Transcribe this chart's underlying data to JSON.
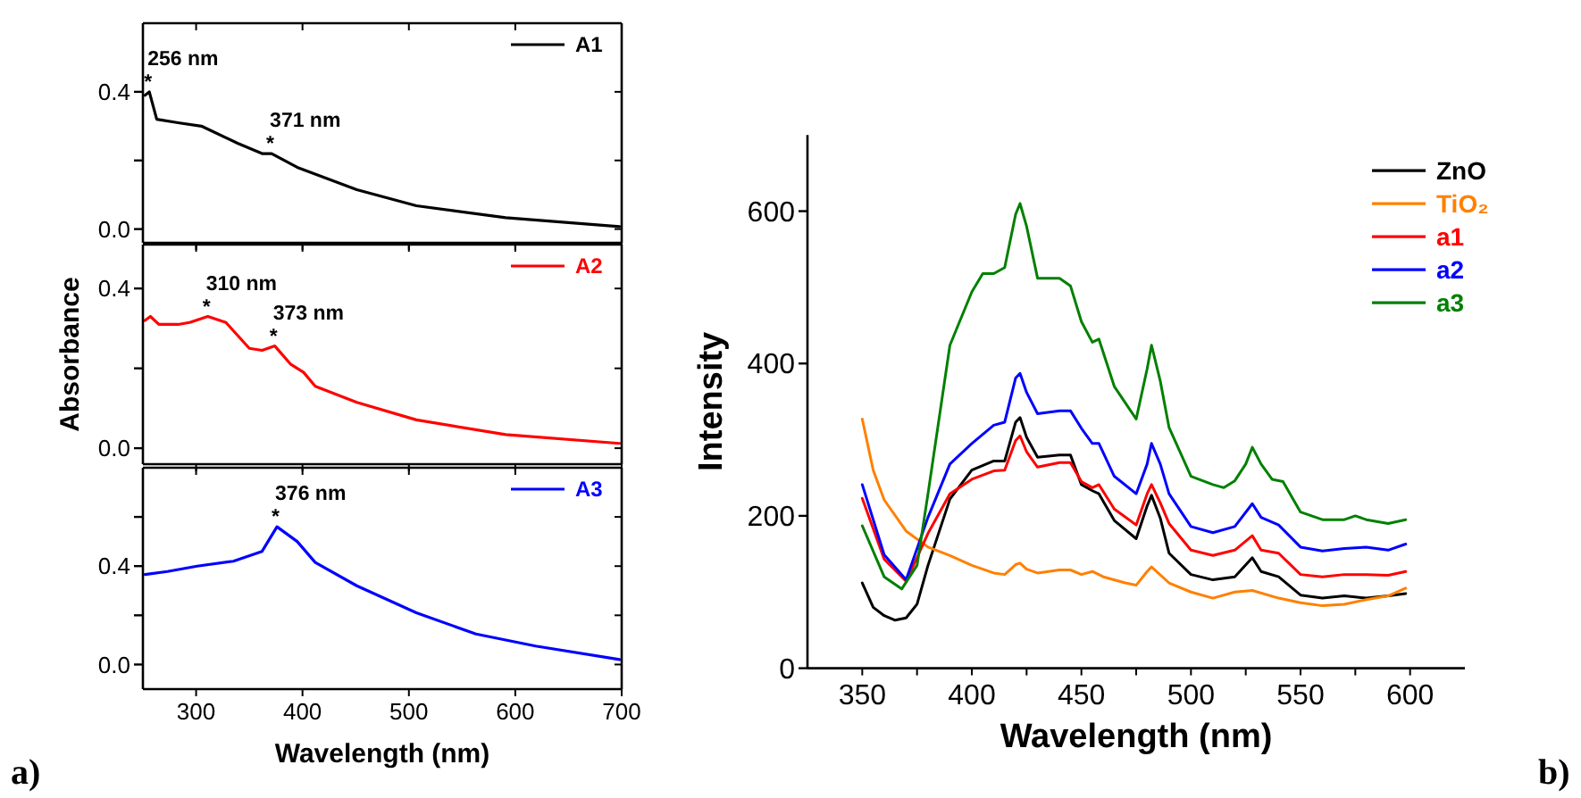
{
  "chart_data": [
    {
      "type": "line",
      "xlim": [
        250,
        700
      ],
      "xticks": [
        {
          "value": 300,
          "label": null
        },
        {
          "value": 400,
          "label": null
        },
        {
          "value": 500,
          "label": null
        },
        {
          "value": 600,
          "label": null
        },
        {
          "value": 700,
          "label": null
        }
      ],
      "ylim": [
        -0.04,
        0.6
      ],
      "yticks": [
        {
          "value": 0,
          "label": "0.0"
        },
        {
          "value": 0.2,
          "label": null
        },
        0.4
      ],
      "tick_labels": "y",
      "legend": "top right",
      "annotations": [
        {
          "text": "256 nm\n*",
          "x": 256,
          "y": 0.4
        },
        {
          "text": "371 nm\n*",
          "x": 371,
          "y": 0.22
        }
      ],
      "series": [
        {
          "name": "A1",
          "color": "#000000",
          "x": [
            252,
            256,
            263,
            283,
            305,
            339,
            362,
            371,
            395,
            451,
            507,
            591,
            698
          ],
          "values": [
            0.39,
            0.4,
            0.32,
            0.31,
            0.3,
            0.25,
            0.22,
            0.22,
            0.18,
            0.115,
            0.068,
            0.033,
            0.007
          ]
        }
      ]
    },
    {
      "type": "line",
      "xlim": [
        250,
        700
      ],
      "xticks": [
        {
          "value": 300,
          "label": null
        },
        {
          "value": 400,
          "label": null
        },
        {
          "value": 500,
          "label": null
        },
        {
          "value": 600,
          "label": null
        },
        {
          "value": 700,
          "label": null
        }
      ],
      "ylim": [
        -0.04,
        0.51
      ],
      "yticks": [
        {
          "value": 0,
          "label": "0.0"
        },
        {
          "value": 0.2,
          "label": null
        },
        0.4
      ],
      "tick_labels": "y",
      "ylabel": "Absorbance",
      "legend": "top right",
      "annotations": [
        {
          "text": "310 nm\n*",
          "x": 311,
          "y": 0.33
        },
        {
          "text": "373 nm\n*",
          "x": 374,
          "y": 0.256
        }
      ],
      "series": [
        {
          "name": "A2",
          "color": "#ff0000",
          "x": [
            252,
            257,
            265,
            283,
            294,
            311,
            328,
            350,
            362,
            374,
            389,
            401,
            412,
            451,
            507,
            591,
            698
          ],
          "values": [
            0.32,
            0.33,
            0.31,
            0.31,
            0.315,
            0.33,
            0.315,
            0.25,
            0.245,
            0.256,
            0.21,
            0.19,
            0.155,
            0.115,
            0.071,
            0.034,
            0.012
          ]
        }
      ]
    },
    {
      "type": "line",
      "xlim": [
        250,
        700
      ],
      "xticks": [
        300,
        400,
        500,
        600,
        700
      ],
      "ylim": [
        -0.1,
        0.8
      ],
      "yticks": [
        {
          "value": 0,
          "label": "0.0"
        },
        {
          "value": 0.2,
          "label": null
        },
        0.4,
        {
          "value": 0.6,
          "label": null
        }
      ],
      "xlabel": "Wavelength (nm)",
      "legend": "top right",
      "annotations": [
        {
          "text": "376 nm\n*",
          "x": 376,
          "y": 0.56
        },
        "a)"
      ],
      "series": [
        {
          "name": "A3",
          "color": "#0000ff",
          "x": [
            252,
            273,
            301,
            335,
            362,
            376,
            395,
            412,
            451,
            507,
            563,
            619,
            698
          ],
          "values": [
            0.366,
            0.378,
            0.4,
            0.42,
            0.46,
            0.56,
            0.5,
            0.415,
            0.32,
            0.21,
            0.124,
            0.075,
            0.02
          ]
        }
      ]
    },
    {
      "type": "line",
      "xlim": [
        325,
        625
      ],
      "xticks": [
        350,
        {
          "value": 375,
          "label": null
        },
        400,
        {
          "value": 425,
          "label": null
        },
        450,
        {
          "value": 475,
          "label": null
        },
        500,
        {
          "value": 525,
          "label": null
        },
        550,
        {
          "value": 575,
          "label": null
        },
        600
      ],
      "ylim": [
        0,
        700
      ],
      "yticks": [
        0,
        200,
        400,
        600
      ],
      "xlabel": "Wavelength (nm)",
      "ylabel": "Intensity",
      "legend": "top right",
      "annotations": [
        "b)"
      ],
      "series": [
        {
          "name": "ZnO",
          "color": "#000000",
          "x": [
            350,
            355,
            360,
            365,
            370,
            375,
            380,
            390,
            400,
            410,
            415,
            420,
            422,
            425,
            430,
            440,
            445,
            450,
            455,
            458,
            465,
            475,
            480,
            482,
            486,
            490,
            500,
            510,
            520,
            528,
            532,
            540,
            550,
            560,
            570,
            580,
            590,
            598
          ],
          "values": [
            112,
            80,
            69,
            63,
            66,
            84,
            135,
            222,
            260,
            272,
            272,
            323,
            329,
            303,
            277,
            280,
            280,
            241,
            233,
            229,
            194,
            170,
            213,
            227,
            197,
            151,
            123,
            116,
            120,
            145,
            127,
            120,
            96,
            92,
            95,
            92,
            95,
            98
          ]
        },
        {
          "name": "TiO₂",
          "color": "#ff8000",
          "x": [
            350,
            355,
            360,
            370,
            380,
            390,
            400,
            410,
            415,
            420,
            422,
            425,
            430,
            440,
            445,
            450,
            455,
            460,
            470,
            475,
            480,
            482,
            490,
            500,
            510,
            520,
            528,
            540,
            550,
            560,
            570,
            580,
            590,
            598
          ],
          "values": [
            327,
            260,
            221,
            180,
            159,
            148,
            135,
            125,
            123,
            136,
            138,
            130,
            125,
            129,
            129,
            123,
            127,
            120,
            112,
            109,
            127,
            133,
            112,
            100,
            92,
            100,
            102,
            92,
            86,
            82,
            84,
            90,
            95,
            105
          ]
        },
        {
          "name": "a1",
          "color": "#ff0000",
          "x": [
            350,
            360,
            370,
            380,
            390,
            400,
            410,
            415,
            420,
            422,
            425,
            430,
            440,
            445,
            450,
            455,
            458,
            465,
            475,
            480,
            482,
            486,
            490,
            500,
            510,
            520,
            528,
            532,
            540,
            550,
            560,
            570,
            580,
            590,
            598
          ],
          "values": [
            223,
            143,
            114,
            177,
            229,
            248,
            259,
            260,
            299,
            305,
            284,
            264,
            270,
            270,
            245,
            237,
            241,
            209,
            188,
            229,
            241,
            217,
            190,
            155,
            148,
            155,
            174,
            155,
            151,
            123,
            120,
            123,
            123,
            122,
            127
          ]
        },
        {
          "name": "a2",
          "color": "#0000ff",
          "x": [
            350,
            360,
            370,
            380,
            390,
            400,
            410,
            415,
            420,
            422,
            425,
            430,
            440,
            445,
            450,
            455,
            458,
            465,
            475,
            480,
            482,
            486,
            490,
            500,
            510,
            520,
            528,
            532,
            540,
            550,
            560,
            570,
            580,
            590,
            598
          ],
          "values": [
            241,
            149,
            116,
            198,
            268,
            295,
            319,
            323,
            381,
            387,
            362,
            334,
            338,
            338,
            315,
            295,
            295,
            252,
            229,
            268,
            295,
            268,
            229,
            186,
            178,
            186,
            216,
            198,
            188,
            159,
            154,
            157,
            159,
            155,
            163
          ]
        },
        {
          "name": "a3",
          "color": "#008000",
          "x": [
            350,
            360,
            368,
            375,
            380,
            390,
            400,
            405,
            410,
            415,
            420,
            422,
            425,
            430,
            440,
            445,
            450,
            455,
            458,
            465,
            475,
            480,
            482,
            486,
            490,
            500,
            510,
            515,
            520,
            525,
            528,
            532,
            537,
            542,
            550,
            560,
            570,
            575,
            580,
            590,
            598
          ],
          "values": [
            187,
            120,
            104,
            135,
            229,
            424,
            494,
            518,
            518,
            526,
            596,
            610,
            580,
            512,
            512,
            502,
            455,
            428,
            432,
            370,
            327,
            393,
            424,
            377,
            316,
            252,
            241,
            237,
            246,
            268,
            290,
            268,
            248,
            245,
            205,
            195,
            195,
            200,
            195,
            190,
            195
          ]
        }
      ]
    }
  ]
}
